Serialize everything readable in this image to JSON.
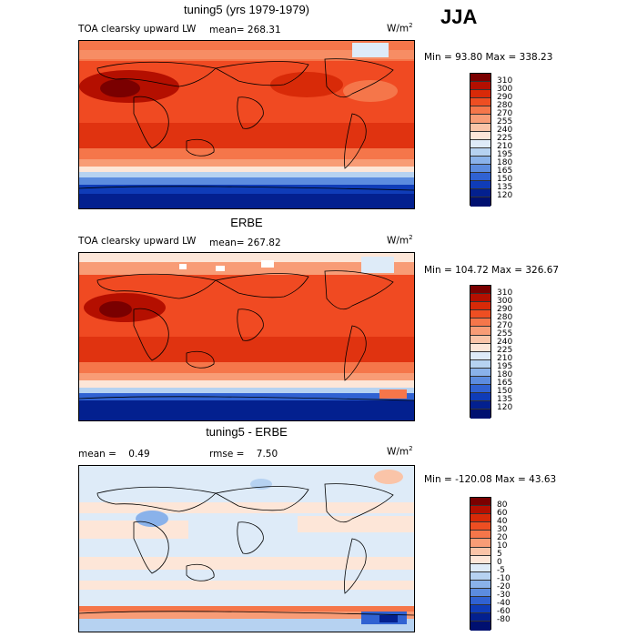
{
  "season": "JJA",
  "panels": [
    {
      "title": "tuning5 (yrs 1979-1979)",
      "var_label": "TOA clearsky upward LW",
      "stat1": "mean= 268.31",
      "stat2": "",
      "units": "W/m",
      "minmax": "Min =  93.80 Max = 338.23",
      "colorbar": {
        "levels": [
          "310",
          "300",
          "290",
          "280",
          "270",
          "255",
          "240",
          "225",
          "210",
          "195",
          "180",
          "165",
          "150",
          "135",
          "120"
        ],
        "colors": [
          "#7a0000",
          "#b40f00",
          "#d82a08",
          "#ee4e22",
          "#f5764a",
          "#f89c76",
          "#fac4a8",
          "#fde6d8",
          "#deebf8",
          "#b6d2f1",
          "#8ab2ea",
          "#5c8cdf",
          "#3062d2",
          "#0f3cb8",
          "#03208f",
          "#001070"
        ]
      }
    },
    {
      "title": "ERBE",
      "var_label": "TOA clearsky upward LW",
      "stat1": "mean= 267.82",
      "stat2": "",
      "units": "W/m",
      "minmax": "Min = 104.72 Max = 326.67",
      "colorbar": {
        "levels": [
          "310",
          "300",
          "290",
          "280",
          "270",
          "255",
          "240",
          "225",
          "210",
          "195",
          "180",
          "165",
          "150",
          "135",
          "120"
        ],
        "colors": [
          "#7a0000",
          "#b40f00",
          "#d82a08",
          "#ee4e22",
          "#f5764a",
          "#f89c76",
          "#fac4a8",
          "#fde6d8",
          "#deebf8",
          "#b6d2f1",
          "#8ab2ea",
          "#5c8cdf",
          "#3062d2",
          "#0f3cb8",
          "#03208f",
          "#001070"
        ]
      }
    },
    {
      "title": "tuning5 - ERBE",
      "var_label": "",
      "stat1": "mean =    0.49",
      "stat2": "rmse =    7.50",
      "units": "W/m",
      "minmax": "Min = -120.08 Max =  43.63",
      "colorbar": {
        "levels": [
          "80",
          "60",
          "40",
          "30",
          "20",
          "10",
          "5",
          "0",
          "-5",
          "-10",
          "-20",
          "-30",
          "-40",
          "-60",
          "-80"
        ],
        "colors": [
          "#7a0000",
          "#b40f00",
          "#d82a08",
          "#ee4e22",
          "#f5764a",
          "#f89c76",
          "#fac4a8",
          "#fde6d8",
          "#deebf8",
          "#b6d2f1",
          "#8ab2ea",
          "#5c8cdf",
          "#3062d2",
          "#0f3cb8",
          "#03208f",
          "#001070"
        ]
      }
    }
  ],
  "units_superscript": "2"
}
